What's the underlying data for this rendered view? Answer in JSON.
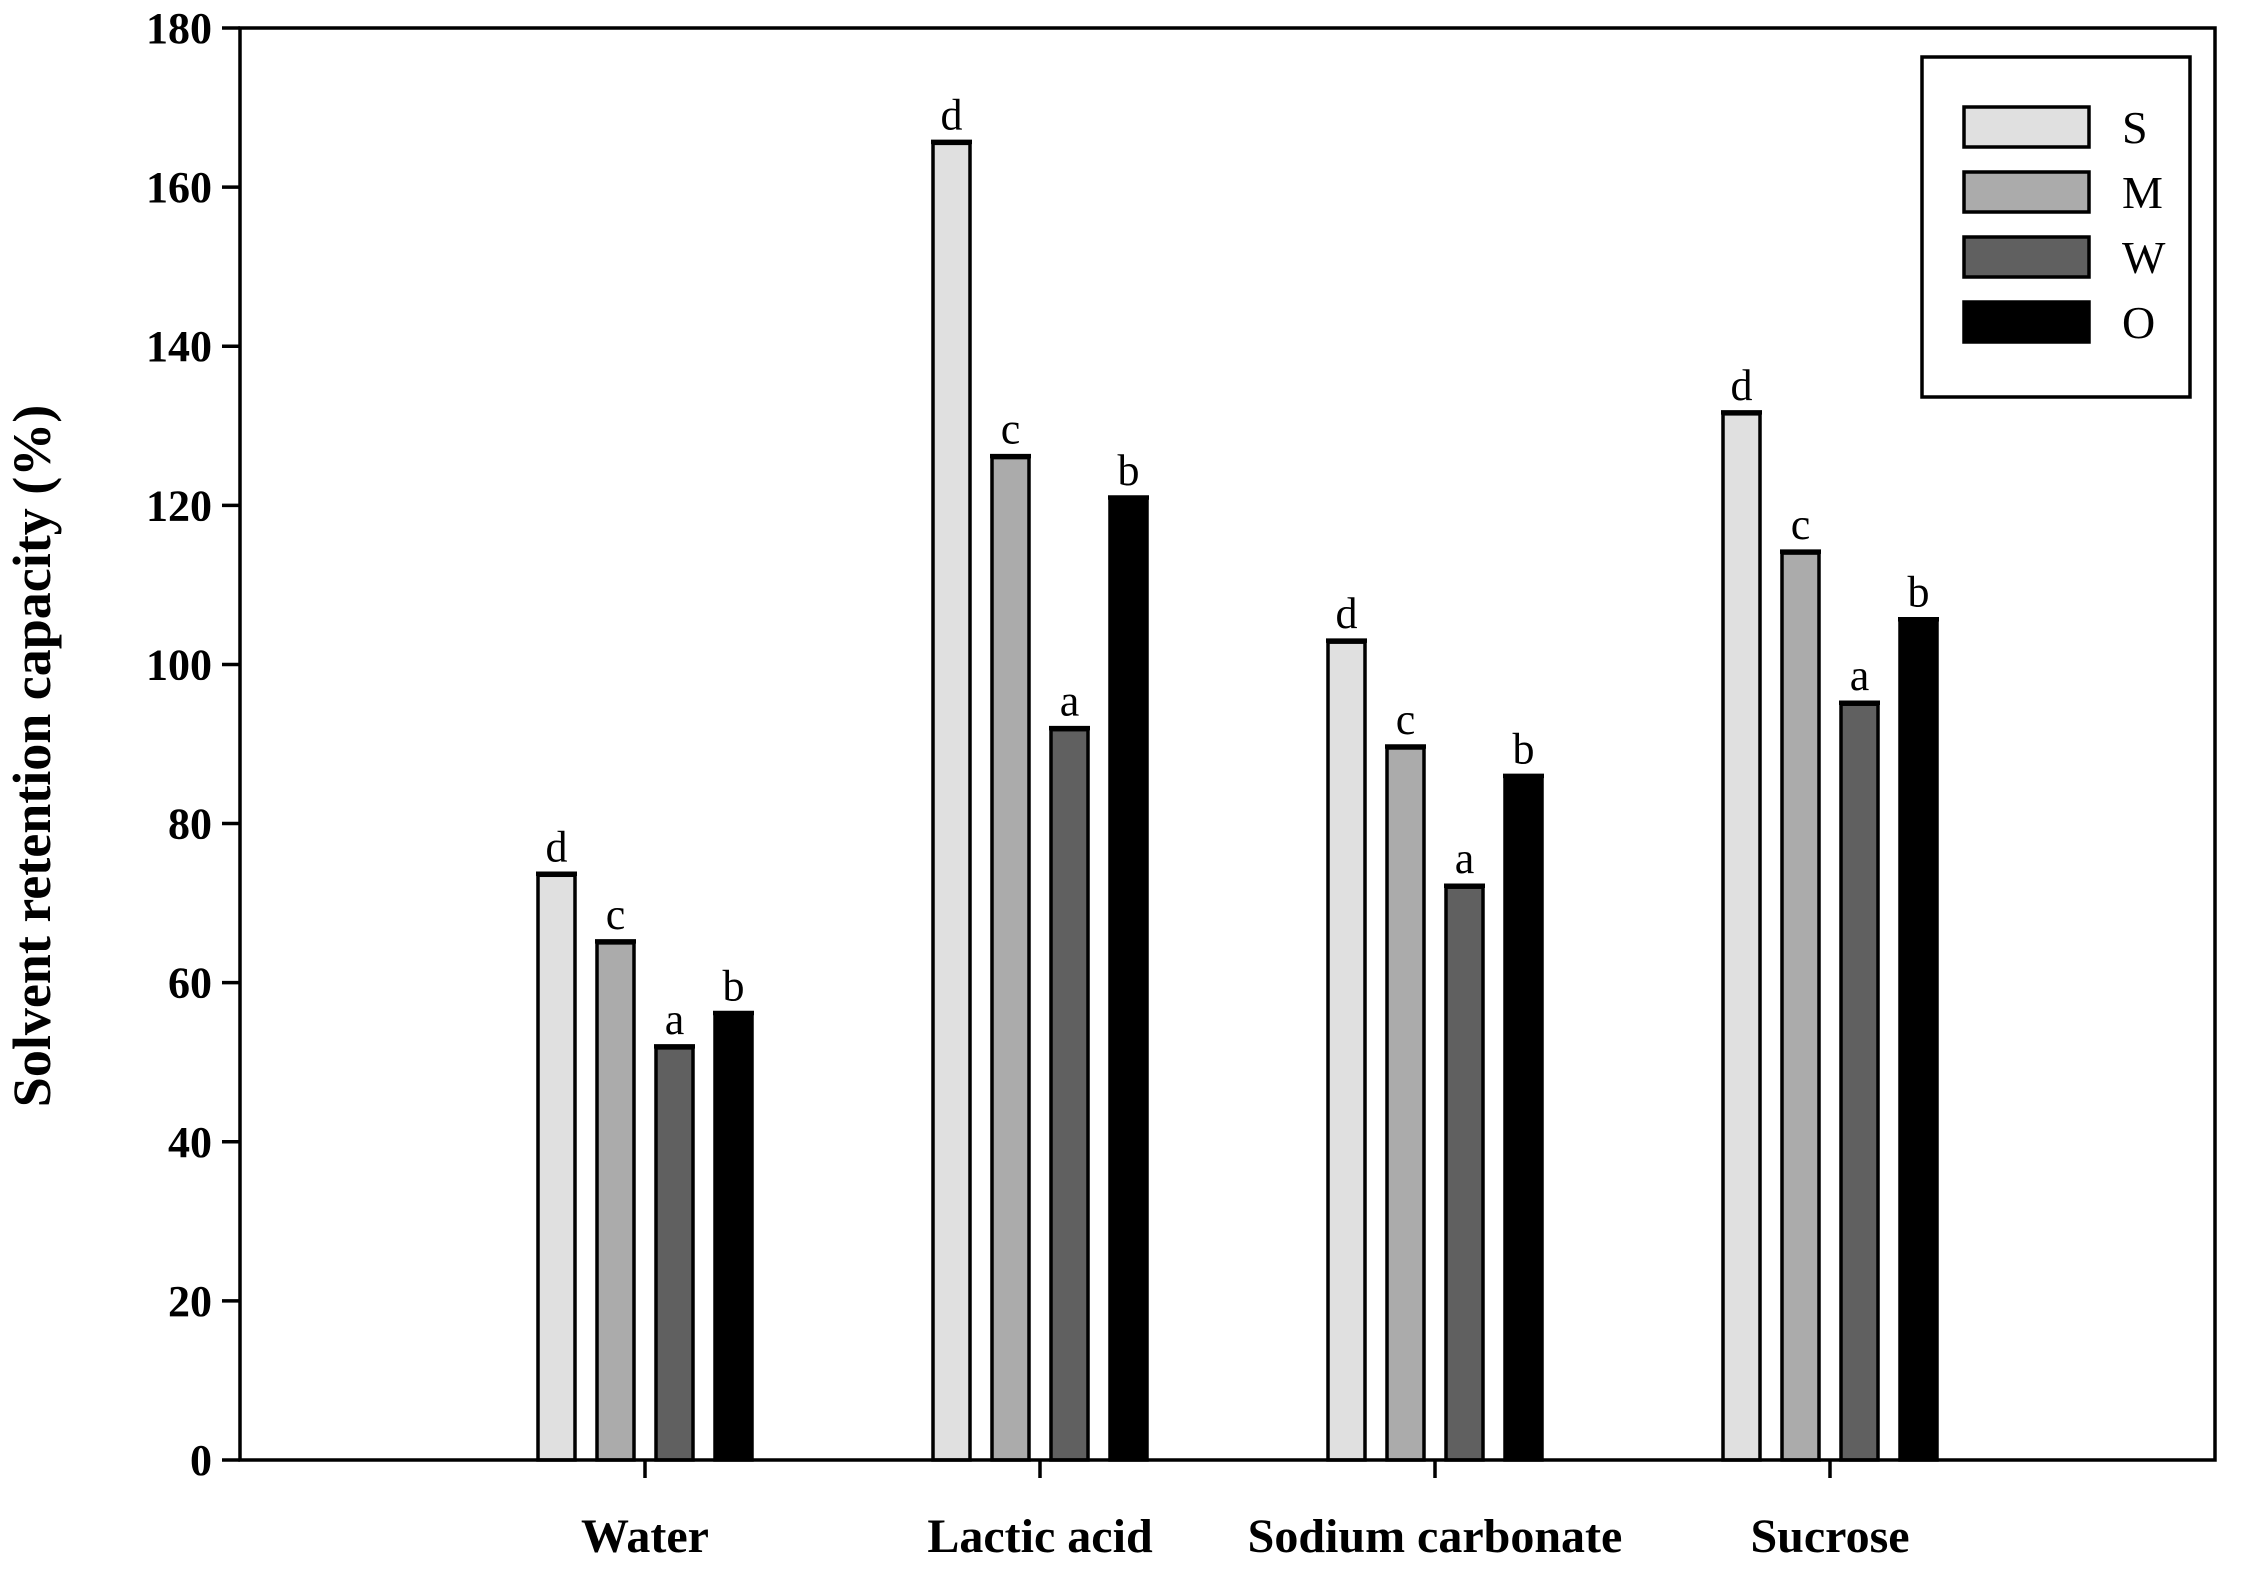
{
  "chart_data": {
    "type": "bar",
    "ylabel": "Solvent retention capacity (%)",
    "xlabel": "",
    "ylim": [
      0,
      180
    ],
    "yticks": [
      0,
      20,
      40,
      60,
      80,
      100,
      120,
      140,
      160,
      180
    ],
    "legend_position": "top-right",
    "categories": [
      "Water",
      "Lactic acid",
      "Sodium carbonate",
      "Sucrose"
    ],
    "series": [
      {
        "name": "S",
        "color": "#e0e0e0",
        "values": [
          73.5,
          165.5,
          102.8,
          131.5
        ],
        "letters": [
          "d",
          "d",
          "d",
          "d"
        ]
      },
      {
        "name": "M",
        "color": "#ababab",
        "values": [
          65,
          126,
          89.5,
          114
        ],
        "letters": [
          "c",
          "c",
          "c",
          "c"
        ]
      },
      {
        "name": "W",
        "color": "#606060",
        "values": [
          51.8,
          91.8,
          72,
          95
        ],
        "letters": [
          "a",
          "a",
          "a",
          "a"
        ]
      },
      {
        "name": "O",
        "color": "#000000",
        "values": [
          56,
          120.8,
          85.8,
          105.5
        ],
        "letters": [
          "b",
          "b",
          "b",
          "b"
        ]
      }
    ]
  }
}
